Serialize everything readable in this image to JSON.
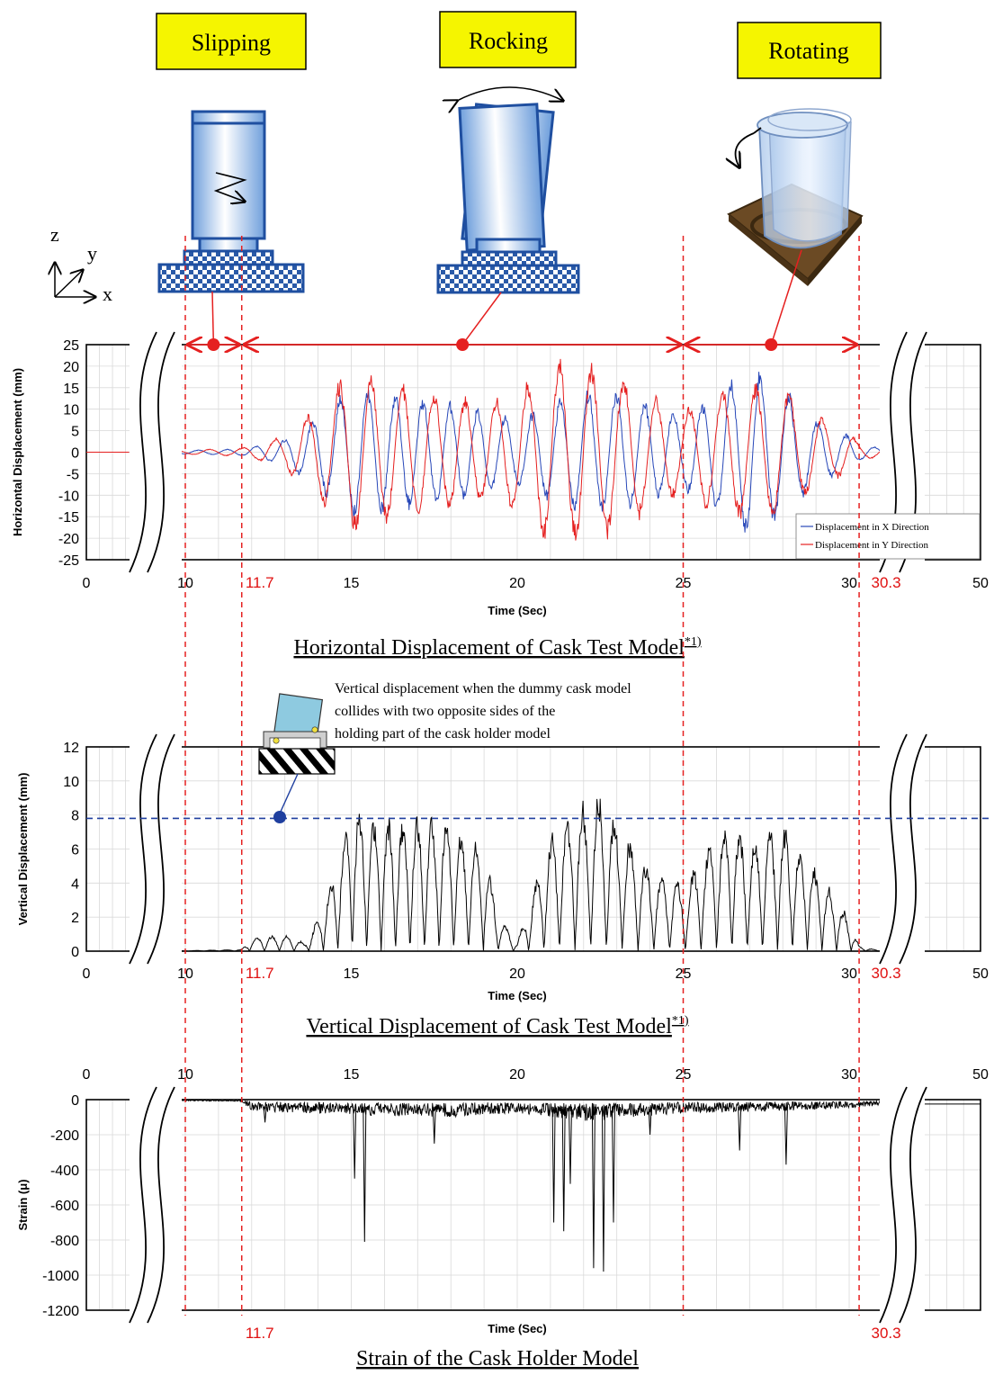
{
  "phases": [
    {
      "label": "Slipping",
      "from": 10,
      "to": 11.7
    },
    {
      "label": "Rocking",
      "from": 11.7,
      "to": 25
    },
    {
      "label": "Rotating",
      "from": 25,
      "to": 30.3
    }
  ],
  "axes_indicator": {
    "z": "z",
    "y": "y",
    "x": "x"
  },
  "markers": {
    "left": "11.7",
    "right": "30.3"
  },
  "annotation": "Vertical displacement when the dummy cask model collides with two opposite sides of the holding part of the cask holder model",
  "colors": {
    "x_series": "#2747b8",
    "y_series": "#e52020",
    "marker": "#e52020",
    "threshold": "#1f3f9f",
    "label_fill": "#f5f500"
  },
  "chart_data": [
    {
      "type": "line",
      "caption": "Horizontal Displacement of Cask Test Model",
      "caption_note": "*1)",
      "xlabel": "Time (Sec)",
      "ylabel": "Horizontal Displacement (mm)",
      "ylim": [
        -25,
        25
      ],
      "yticks": [
        "25",
        "20",
        "15",
        "10",
        "5",
        "0",
        "-5",
        "-10",
        "-15",
        "-20",
        "-25"
      ],
      "xticks": [
        "0",
        "10",
        "15",
        "20",
        "25",
        "30",
        "50"
      ],
      "break_axis": true,
      "grid": true,
      "legend_position": "bottom-right",
      "series": [
        {
          "name": "Displacement in X Direction",
          "color": "#2747b8",
          "envelope": [
            [
              9.3,
              0.3
            ],
            [
              11.7,
              0.8
            ],
            [
              13,
              3
            ],
            [
              14,
              9
            ],
            [
              15,
              16
            ],
            [
              16,
              15
            ],
            [
              17,
              13
            ],
            [
              18,
              12
            ],
            [
              19,
              10
            ],
            [
              20,
              8
            ],
            [
              21,
              12
            ],
            [
              22,
              15
            ],
            [
              23,
              15
            ],
            [
              24,
              12
            ],
            [
              25,
              9
            ],
            [
              26,
              14
            ],
            [
              27,
              21
            ],
            [
              28,
              16
            ],
            [
              29,
              8
            ],
            [
              30,
              4
            ],
            [
              30.3,
              2
            ],
            [
              31,
              1
            ]
          ]
        },
        {
          "name": "Displacement in Y Direction",
          "color": "#e52020",
          "envelope": [
            [
              9.3,
              0.3
            ],
            [
              11.7,
              1
            ],
            [
              13,
              4
            ],
            [
              14,
              12
            ],
            [
              15,
              20
            ],
            [
              16,
              17
            ],
            [
              17,
              16
            ],
            [
              18,
              14
            ],
            [
              19,
              12
            ],
            [
              20,
              15
            ],
            [
              21,
              23
            ],
            [
              22,
              22
            ],
            [
              23,
              20
            ],
            [
              24,
              14
            ],
            [
              25,
              10
            ],
            [
              26,
              15
            ],
            [
              27,
              17
            ],
            [
              28,
              16
            ],
            [
              29,
              9
            ],
            [
              30,
              5
            ],
            [
              30.3,
              2
            ],
            [
              31,
              1
            ]
          ]
        }
      ]
    },
    {
      "type": "line",
      "caption": "Vertical Displacement of Cask Test Model",
      "caption_note": "*1)",
      "xlabel": "Time (Sec)",
      "ylabel": "Vertical Displacement (mm)",
      "ylim": [
        0,
        12
      ],
      "yticks": [
        "12",
        "10",
        "8",
        "6",
        "4",
        "2",
        "0"
      ],
      "xticks": [
        "0",
        "10",
        "15",
        "20",
        "25",
        "30",
        "50"
      ],
      "break_axis": true,
      "grid": true,
      "threshold": 7.8,
      "series": [
        {
          "name": "",
          "color": "#000000",
          "envelope": [
            [
              9.3,
              0
            ],
            [
              11.7,
              0.1
            ],
            [
              12,
              0.8
            ],
            [
              13,
              1
            ],
            [
              13.6,
              0.5
            ],
            [
              14,
              2
            ],
            [
              14.5,
              5
            ],
            [
              15,
              9
            ],
            [
              15.5,
              8
            ],
            [
              16,
              8
            ],
            [
              17,
              8
            ],
            [
              18,
              8
            ],
            [
              19,
              6
            ],
            [
              19.5,
              2
            ],
            [
              20,
              0.5
            ],
            [
              20.5,
              4
            ],
            [
              21,
              7
            ],
            [
              22,
              9
            ],
            [
              22.5,
              9.6
            ],
            [
              23,
              8
            ],
            [
              24,
              5
            ],
            [
              25,
              4
            ],
            [
              26,
              7
            ],
            [
              26.5,
              7.8
            ],
            [
              27,
              7
            ],
            [
              28,
              7.6
            ],
            [
              29,
              5
            ],
            [
              30,
              2
            ],
            [
              30.3,
              0.3
            ],
            [
              31,
              0
            ]
          ]
        }
      ]
    },
    {
      "type": "line",
      "caption": "Strain of the Cask Holder Model",
      "caption_note": "",
      "xlabel": "Time (Sec)",
      "ylabel": "Strain (μ)",
      "ylim": [
        -1200,
        0
      ],
      "yticks": [
        "0",
        "-200",
        "-400",
        "-600",
        "-800",
        "-1000",
        "-1200"
      ],
      "xticks": [
        "0",
        "10",
        "15",
        "20",
        "25",
        "30",
        "50"
      ],
      "break_axis": true,
      "grid": true,
      "series": [
        {
          "name": "",
          "color": "#000000",
          "base_noise": [
            [
              9.3,
              -5
            ],
            [
              11.7,
              -10
            ],
            [
              12,
              -60
            ],
            [
              15,
              -80
            ],
            [
              18,
              -90
            ],
            [
              20,
              -70
            ],
            [
              22,
              -110
            ],
            [
              25,
              -70
            ],
            [
              28,
              -60
            ],
            [
              30.3,
              -40
            ],
            [
              31,
              -30
            ]
          ],
          "spikes": [
            [
              12.4,
              -130
            ],
            [
              15.1,
              -450
            ],
            [
              15.4,
              -810
            ],
            [
              17.5,
              -250
            ],
            [
              21.1,
              -700
            ],
            [
              21.4,
              -750
            ],
            [
              21.6,
              -480
            ],
            [
              22.3,
              -960
            ],
            [
              22.6,
              -980
            ],
            [
              22.9,
              -700
            ],
            [
              24,
              -200
            ],
            [
              26.7,
              -290
            ],
            [
              28.1,
              -370
            ]
          ]
        }
      ]
    }
  ]
}
